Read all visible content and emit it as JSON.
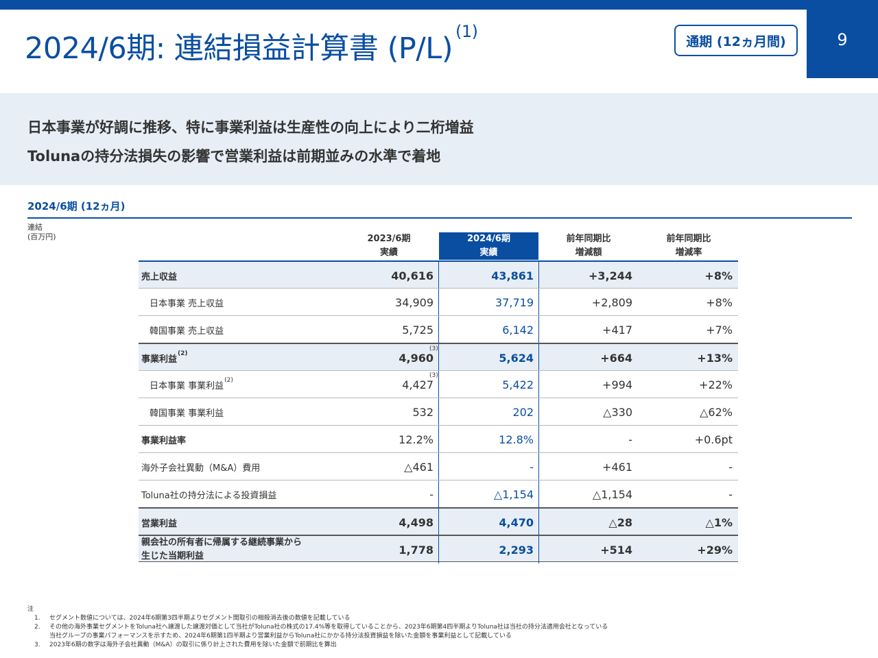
{
  "page": {
    "number": "9"
  },
  "header": {
    "title": "2024/6期: 連結損益計算書 (P/L)",
    "title_note": "(1)",
    "period_badge": "通期 (12ヵ月間)"
  },
  "banner": {
    "line1": "日本事業が好調に推移、特に事業利益は生産性の向上により二桁増益",
    "line2": "Tolunaの持分法損失の影響で営業利益は前期並みの水準で着地"
  },
  "section": {
    "title": "2024/6期 (12ヵ月)",
    "unit_line1": "連結",
    "unit_line2": "(百万円)"
  },
  "table": {
    "headers": [
      {
        "line1": "2023/6期",
        "line2": "実績"
      },
      {
        "line1": "2024/6期",
        "line2": "実績"
      },
      {
        "line1": "前年同期比",
        "line2": "増減額"
      },
      {
        "line1": "前年同期比",
        "line2": "増減率"
      }
    ],
    "rows": [
      {
        "label": "売上収益",
        "prev": "40,616",
        "curr": "43,861",
        "diff": "+3,244",
        "rate": "+8%"
      },
      {
        "label": "日本事業 売上収益",
        "prev": "34,909",
        "curr": "37,719",
        "diff": "+2,809",
        "rate": "+8%"
      },
      {
        "label": "韓国事業 売上収益",
        "prev": "5,725",
        "curr": "6,142",
        "diff": "+417",
        "rate": "+7%"
      },
      {
        "label": "事業利益",
        "label_note": "(2)",
        "prev": "4,960",
        "prev_note": "(3)",
        "curr": "5,624",
        "diff": "+664",
        "rate": "+13%"
      },
      {
        "label": "日本事業 事業利益",
        "label_note": "(2)",
        "prev": "4,427",
        "prev_note": "(3)",
        "curr": "5,422",
        "diff": "+994",
        "rate": "+22%"
      },
      {
        "label": "韓国事業 事業利益",
        "prev": "532",
        "curr": "202",
        "diff": "△330",
        "rate": "△62%"
      },
      {
        "label": "事業利益率",
        "prev": "12.2%",
        "curr": "12.8%",
        "diff": "-",
        "rate": "+0.6pt"
      },
      {
        "label": "海外子会社異動（M&A）費用",
        "prev": "△461",
        "curr": "-",
        "diff": "+461",
        "rate": "-"
      },
      {
        "label": "Toluna社の持分法による投資損益",
        "prev": "-",
        "curr": "△1,154",
        "diff": "△1,154",
        "rate": "-"
      },
      {
        "label": "営業利益",
        "prev": "4,498",
        "curr": "4,470",
        "diff": "△28",
        "rate": "△1%"
      },
      {
        "label_line1": "親会社の所有者に帰属する継続事業から",
        "label_line2": "生じた当期利益",
        "prev": "1,778",
        "curr": "2,293",
        "diff": "+514",
        "rate": "+29%"
      }
    ]
  },
  "notes": {
    "heading": "注",
    "items": [
      {
        "idx": "1.",
        "text": "セグメント数値については、2024年6期第3四半期よりセグメント間取引の相殺消去後の数値を記載している"
      },
      {
        "idx": "2.",
        "text": "その他の海外事業セグメントをToluna社へ譲渡した譲渡対価として当社がToluna社の株式の17.4%等を取得していることから、2023年6期第4四半期よりToluna社は当社の持分法適用会社となっている",
        "text2": "当社グループの事業パフォーマンスを示すため、2024年6期第1四半期より営業利益からToluna社にかかる持分法投資損益を除いた金額を事業利益として記載している"
      },
      {
        "idx": "3.",
        "text": "2023年6期の数字は海外子会社異動（M&A）の取引に係り計上された費用を除いた金額で前期比を算出"
      }
    ]
  },
  "colors": {
    "brand": "#0a4ea2",
    "banner_bg": "#e8eef6",
    "row_shade": "#e8eef6"
  }
}
